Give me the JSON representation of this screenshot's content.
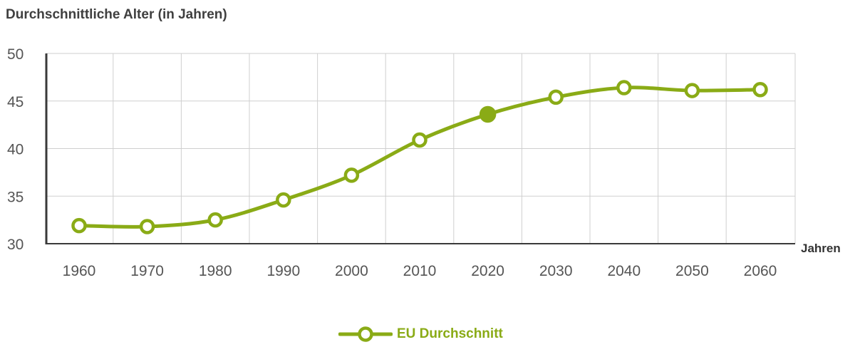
{
  "chart_data": {
    "type": "line",
    "title": "Durchschnittliche Alter (in Jahren)",
    "xlabel": "Jahren",
    "ylabel": "",
    "categories": [
      "1960",
      "1970",
      "1980",
      "1990",
      "2000",
      "2010",
      "2020",
      "2030",
      "2040",
      "2050",
      "2060"
    ],
    "yticks": [
      "30",
      "35",
      "40",
      "45",
      "50"
    ],
    "ylim": [
      30,
      50
    ],
    "grid": true,
    "legend_position": "bottom",
    "series": [
      {
        "name": "EU Durchschnitt",
        "color": "#8aab16",
        "values": [
          31.9,
          31.8,
          32.5,
          34.6,
          37.2,
          40.9,
          43.6,
          45.4,
          46.4,
          46.1,
          46.2
        ],
        "highlighted_point": "2020"
      }
    ]
  }
}
